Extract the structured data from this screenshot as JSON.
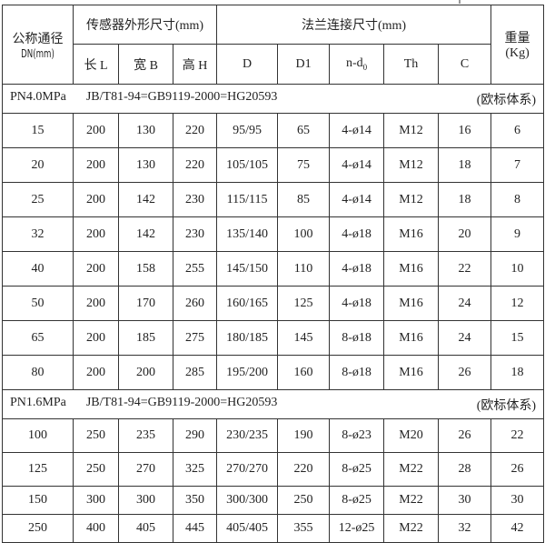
{
  "header": {
    "dn_label": "公称通径",
    "dn_unit": "DN(mm)",
    "sensor_group": "传感器外形尺寸(mm)",
    "flange_group": "法兰连接尺寸(mm)",
    "weight_label": "重量",
    "weight_unit": "(Kg)",
    "columns": [
      "长 L",
      "宽 B",
      "高 H",
      "D",
      "D1",
      "n-d",
      "Th",
      "C"
    ],
    "nd_subscript": "0"
  },
  "sections": [
    {
      "pressure": "PN4.0MPa",
      "standard": "JB/T81-94=GB9119-2000=HG20593",
      "system": "(欧标体系)",
      "rows": [
        [
          "15",
          "200",
          "130",
          "220",
          "95/95",
          "65",
          "4-ø14",
          "M12",
          "16",
          "6"
        ],
        [
          "20",
          "200",
          "130",
          "220",
          "105/105",
          "75",
          "4-ø14",
          "M12",
          "18",
          "7"
        ],
        [
          "25",
          "200",
          "142",
          "230",
          "115/115",
          "85",
          "4-ø14",
          "M12",
          "18",
          "8"
        ],
        [
          "32",
          "200",
          "142",
          "230",
          "135/140",
          "100",
          "4-ø18",
          "M16",
          "20",
          "9"
        ],
        [
          "40",
          "200",
          "158",
          "255",
          "145/150",
          "110",
          "4-ø18",
          "M16",
          "22",
          "10"
        ],
        [
          "50",
          "200",
          "170",
          "260",
          "160/165",
          "125",
          "4-ø18",
          "M16",
          "24",
          "12"
        ],
        [
          "65",
          "200",
          "185",
          "275",
          "180/185",
          "145",
          "8-ø18",
          "M16",
          "24",
          "15"
        ],
        [
          "80",
          "200",
          "200",
          "285",
          "195/200",
          "160",
          "8-ø18",
          "M16",
          "26",
          "18"
        ]
      ]
    },
    {
      "pressure": "PN1.6MPa",
      "standard": "JB/T81-94=GB9119-2000=HG20593",
      "system": "(欧标体系)",
      "rows": [
        [
          "100",
          "250",
          "235",
          "290",
          "230/235",
          "190",
          "8-ø23",
          "M20",
          "26",
          "22"
        ],
        [
          "125",
          "250",
          "270",
          "325",
          "270/270",
          "220",
          "8-ø25",
          "M22",
          "28",
          "26"
        ],
        [
          "150",
          "300",
          "300",
          "350",
          "300/300",
          "250",
          "8-ø25",
          "M22",
          "30",
          "30"
        ],
        [
          "250",
          "400",
          "405",
          "445",
          "405/405",
          "355",
          "12-ø25",
          "M22",
          "32",
          "42"
        ]
      ]
    }
  ]
}
